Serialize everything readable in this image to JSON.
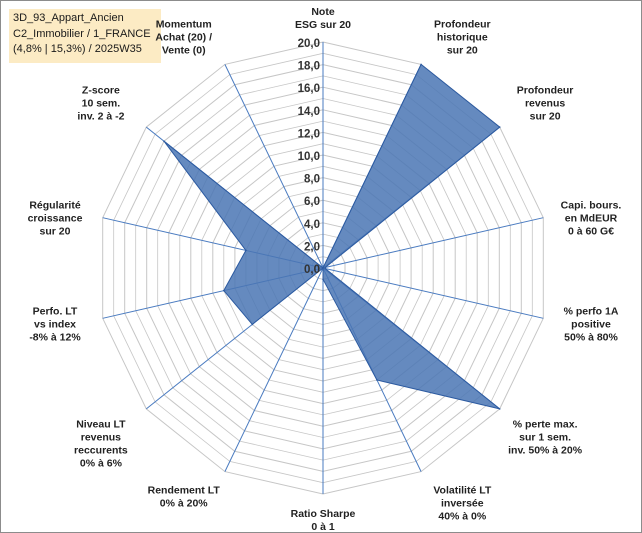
{
  "title": {
    "line1": "3D_93_Appart_Ancien",
    "line2": "C2_Immobilier / 1_FRANCE",
    "line3": "(4,8% | 15,3%) / 2025W35"
  },
  "colors": {
    "fill": "#4a76b4",
    "stroke": "#2c5aa0",
    "grid": "#c6c6c6",
    "spoke": "#4a7bc0",
    "title_bg": "#fcebc4"
  },
  "chart_data": {
    "type": "radar",
    "rmin": 0,
    "rmax": 20,
    "ticks": [
      "0,0",
      "2,0",
      "4,0",
      "6,0",
      "8,0",
      "10,0",
      "12,0",
      "14,0",
      "16,0",
      "18,0",
      "20,0"
    ],
    "tick_values": [
      0,
      2,
      4,
      6,
      8,
      10,
      12,
      14,
      16,
      18,
      20
    ],
    "categories": [
      [
        "Note",
        "ESG sur 20"
      ],
      [
        "Profondeur",
        "historique",
        "sur 20"
      ],
      [
        "Profondeur",
        "revenus",
        "sur 20"
      ],
      [
        "Capi. bours.",
        "en MdEUR",
        "0 à 60 G€"
      ],
      [
        "% perfo 1A",
        "positive",
        "50% à 80%"
      ],
      [
        "% perte max.",
        "sur 1 sem.",
        "inv. 50% à 20%"
      ],
      [
        "Volatilité LT",
        "inversée",
        "40% à 0%"
      ],
      [
        "Ratio Sharpe",
        "0 à 1"
      ],
      [
        "Rendement LT",
        "0% à 20%"
      ],
      [
        "Niveau LT",
        "revenus",
        "reccurents",
        "0% à 6%"
      ],
      [
        "Perfo. LT",
        "vs index",
        "-8% à 12%"
      ],
      [
        "Régularité",
        "croissance",
        "sur 20"
      ],
      [
        "Z-score",
        "10 sem.",
        "inv. 2 à -2"
      ],
      [
        "Momentum",
        "Achat (20) /",
        "Vente (0)"
      ]
    ],
    "series": [
      {
        "values": [
          0,
          20,
          20,
          0.2,
          0.2,
          20,
          11,
          1,
          0,
          8,
          9,
          7,
          18,
          0
        ]
      }
    ]
  }
}
